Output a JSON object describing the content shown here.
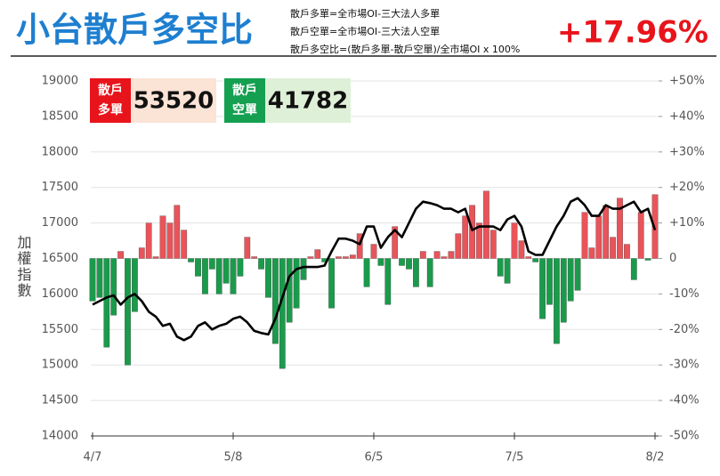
{
  "chart_data": {
    "type": "combo",
    "title": "小台散戶多空比",
    "notes": [
      "散戶多單=全市場OI-三大法人多單",
      "散戶空單=全市場OI-三大法人空單",
      "散戶多空比=(散戶多單-散戶空單)/全市場OI x 100%"
    ],
    "headline": "+17.96%",
    "y_label": "加權指數",
    "boxes": [
      {
        "label": "散戶多單",
        "value": 53520,
        "color": "#e8141b",
        "bg": "#fbe3d6"
      },
      {
        "label": "散戶空單",
        "value": 41782,
        "color": "#14a050",
        "bg": "#dff0d8"
      }
    ],
    "categories": [
      "4/7",
      null,
      null,
      null,
      null,
      null,
      null,
      null,
      null,
      null,
      null,
      null,
      null,
      null,
      null,
      null,
      null,
      null,
      null,
      null,
      "5/8",
      null,
      null,
      null,
      null,
      null,
      null,
      null,
      null,
      null,
      null,
      null,
      null,
      null,
      null,
      null,
      null,
      null,
      null,
      null,
      "6/5",
      null,
      null,
      null,
      null,
      null,
      null,
      null,
      null,
      null,
      null,
      null,
      null,
      null,
      null,
      null,
      null,
      null,
      null,
      null,
      "7/5",
      null,
      null,
      null,
      null,
      null,
      null,
      null,
      null,
      null,
      null,
      null,
      null,
      null,
      null,
      null,
      null,
      null,
      null,
      null,
      "8/2"
    ],
    "series": [
      {
        "type": "bar",
        "axis": "y2",
        "color": "#e8545a",
        "negative_color": "#1a9b4b",
        "values": [
          -12,
          -11,
          -25,
          -16,
          2,
          -30,
          -15,
          3,
          10,
          0.5,
          12,
          10,
          15,
          8,
          -1,
          -5,
          -10,
          -3,
          -10,
          -7,
          -10,
          -5,
          6,
          0.5,
          -3,
          -11,
          -24,
          -31,
          -18,
          -14,
          -6,
          0.5,
          2.5,
          -1,
          -14,
          0.5,
          0.5,
          1,
          7,
          -8,
          4,
          -2,
          -13,
          9,
          -2,
          -3,
          -8,
          2,
          -8,
          2,
          0.5,
          2,
          7,
          12,
          15,
          10,
          19,
          8,
          -5,
          -7,
          10,
          5,
          0.5,
          -1,
          -17,
          -13,
          -24,
          -18,
          -12,
          -9,
          13,
          3,
          12,
          15,
          6,
          17,
          4,
          -6,
          13,
          -0.5,
          18
        ]
      },
      {
        "type": "line",
        "color": "#000000",
        "values": [
          15850,
          15900,
          15950,
          15980,
          15850,
          15950,
          16000,
          15900,
          15750,
          15680,
          15550,
          15580,
          15400,
          15350,
          15400,
          15550,
          15600,
          15500,
          15550,
          15580,
          15650,
          15680,
          15600,
          15480,
          15450,
          15430,
          15650,
          15950,
          16250,
          16350,
          16380,
          16380,
          16380,
          16400,
          16600,
          16780,
          16780,
          16750,
          16700,
          16950,
          16950,
          16650,
          16800,
          16900,
          16800,
          17000,
          17200,
          17300,
          17280,
          17250,
          17200,
          17200,
          17150,
          17200,
          16900,
          16950,
          16950,
          16950,
          16900,
          17050,
          17100,
          16950,
          16600,
          16550,
          16550,
          16750,
          16950,
          17100,
          17300,
          17350,
          17250,
          17100,
          17100,
          17250,
          17200,
          17200,
          17250,
          17300,
          17150,
          17200,
          16900
        ]
      }
    ],
    "ylim": [
      14000,
      19000
    ],
    "yticks": [
      14000,
      14500,
      15000,
      15500,
      16000,
      16500,
      17000,
      17500,
      18000,
      18500,
      19000
    ],
    "y2lim": [
      -50,
      50
    ],
    "y2ticks": [
      {
        "value": -50,
        "label": "-50%"
      },
      {
        "value": -40,
        "label": "-40%"
      },
      {
        "value": -30,
        "label": "-30%"
      },
      {
        "value": -20,
        "label": "-20%"
      },
      {
        "value": -10,
        "label": "-10%"
      },
      0,
      {
        "value": 10,
        "label": "+10%"
      },
      {
        "value": 20,
        "label": "+20%"
      },
      {
        "value": 30,
        "label": "+30%"
      },
      {
        "value": 40,
        "label": "+40%"
      },
      {
        "value": 50,
        "label": "+50%"
      }
    ],
    "grid": true
  }
}
